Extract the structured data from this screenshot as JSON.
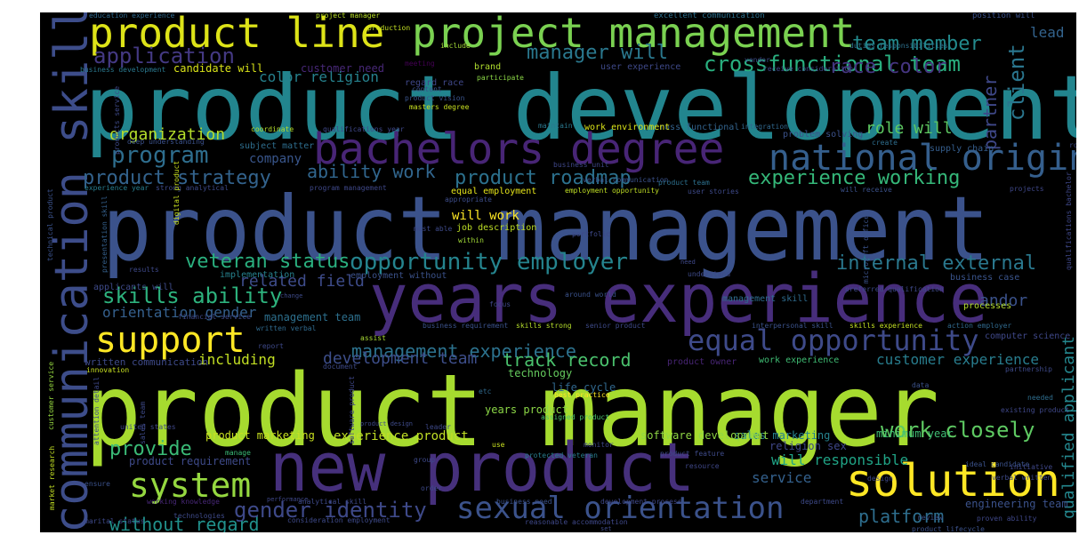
{
  "words": [
    {
      "id": "w01",
      "text": "product manager",
      "color": "#a6db2f"
    },
    {
      "id": "w02",
      "text": "product development",
      "color": "#22858e"
    },
    {
      "id": "w03",
      "text": "product management",
      "color": "#3b528b"
    },
    {
      "id": "w04",
      "text": "years experience",
      "color": "#472d7b"
    },
    {
      "id": "w05",
      "text": "new product",
      "color": "#46307c"
    },
    {
      "id": "w06",
      "text": "bachelors degree",
      "color": "#482576"
    },
    {
      "id": "w07",
      "text": "communication skill",
      "color": "#3d4d8a"
    },
    {
      "id": "w08",
      "text": "product line",
      "color": "#dde318"
    },
    {
      "id": "w09",
      "text": "project management",
      "color": "#7ad151"
    },
    {
      "id": "w10",
      "text": "solution",
      "color": "#fde725"
    },
    {
      "id": "w11",
      "text": "national origin",
      "color": "#355f8d"
    },
    {
      "id": "w12",
      "text": "support",
      "color": "#fde725"
    },
    {
      "id": "w13",
      "text": "equal opportunity",
      "color": "#3e4a89"
    },
    {
      "id": "w14",
      "text": "sexual orientation",
      "color": "#3b528b"
    },
    {
      "id": "w15",
      "text": "system",
      "color": "#95d840"
    },
    {
      "id": "w16",
      "text": "opportunity employer",
      "color": "#25848e"
    },
    {
      "id": "w17",
      "text": "gender identity",
      "color": "#3e4989"
    },
    {
      "id": "w18",
      "text": "crossfunctional team",
      "color": "#29af7f"
    },
    {
      "id": "w19",
      "text": "application",
      "color": "#443983"
    },
    {
      "id": "w20",
      "text": "team member",
      "color": "#238a8d"
    },
    {
      "id": "w21",
      "text": "race color",
      "color": "#453581"
    },
    {
      "id": "w22",
      "text": "manager will",
      "color": "#2a788e"
    },
    {
      "id": "w23",
      "text": "client",
      "color": "#2a768e"
    },
    {
      "id": "w24",
      "text": "partner",
      "color": "#3f4889"
    },
    {
      "id": "w25",
      "text": "program",
      "color": "#2e6e8e"
    },
    {
      "id": "w26",
      "text": "product strategy",
      "color": "#33638d"
    },
    {
      "id": "w27",
      "text": "product roadmap",
      "color": "#2c718e"
    },
    {
      "id": "w28",
      "text": "experience working",
      "color": "#35b779"
    },
    {
      "id": "w29",
      "text": "ability work",
      "color": "#31668e"
    },
    {
      "id": "w30",
      "text": "veteran status",
      "color": "#2ab07f"
    },
    {
      "id": "w31",
      "text": "internal external",
      "color": "#2a788e"
    },
    {
      "id": "w32",
      "text": "skills ability",
      "color": "#2db27d"
    },
    {
      "id": "w33",
      "text": "related field",
      "color": "#3e4c8a"
    },
    {
      "id": "w34",
      "text": "management experience",
      "color": "#2c728e"
    },
    {
      "id": "w35",
      "text": "track record",
      "color": "#4ac16d"
    },
    {
      "id": "w36",
      "text": "development team",
      "color": "#3d4e8a"
    },
    {
      "id": "w37",
      "text": "customer experience",
      "color": "#287d8e"
    },
    {
      "id": "w38",
      "text": "work closely",
      "color": "#5ec962"
    },
    {
      "id": "w39",
      "text": "provide",
      "color": "#3aba76"
    },
    {
      "id": "w40",
      "text": "without regard",
      "color": "#21918c"
    },
    {
      "id": "w41",
      "text": "platform",
      "color": "#2e6e8e"
    },
    {
      "id": "w42",
      "text": "will responsible",
      "color": "#20a486"
    },
    {
      "id": "w43",
      "text": "service",
      "color": "#34618d"
    },
    {
      "id": "w44",
      "text": "role will",
      "color": "#5ec962"
    },
    {
      "id": "w45",
      "text": "organization",
      "color": "#b5de2b"
    },
    {
      "id": "w46",
      "text": "company",
      "color": "#39568c"
    },
    {
      "id": "w47",
      "text": "color religion",
      "color": "#26828e"
    },
    {
      "id": "w48",
      "text": "lead",
      "color": "#33638d"
    },
    {
      "id": "w49",
      "text": "andor",
      "color": "#3b528b"
    },
    {
      "id": "w50",
      "text": "including",
      "color": "#c2df23"
    },
    {
      "id": "w51",
      "text": "orientation gender",
      "color": "#35608d"
    },
    {
      "id": "w52",
      "text": "management team",
      "color": "#2d708e"
    },
    {
      "id": "w53",
      "text": "candidate will",
      "color": "#d8e219"
    },
    {
      "id": "w54",
      "text": "customer need",
      "color": "#482878"
    },
    {
      "id": "w55",
      "text": "qualified applicant",
      "color": "#24878e"
    },
    {
      "id": "w56",
      "text": "product marketing",
      "color": "#c8e020"
    },
    {
      "id": "w57",
      "text": "experience product",
      "color": "#c0df25"
    },
    {
      "id": "w58",
      "text": "years product",
      "color": "#8bd646"
    },
    {
      "id": "w59",
      "text": "will work",
      "color": "#fde725"
    },
    {
      "id": "w60",
      "text": "product requirement",
      "color": "#3e4a89"
    },
    {
      "id": "w61",
      "text": "minimum year",
      "color": "#3fbc73"
    },
    {
      "id": "w62",
      "text": "engineering team",
      "color": "#3b528b"
    },
    {
      "id": "w63",
      "text": "life cycle",
      "color": "#31688e"
    },
    {
      "id": "w64",
      "text": "sales marketing",
      "color": "#26828e"
    },
    {
      "id": "w65",
      "text": "technology",
      "color": "#65cb5e"
    },
    {
      "id": "w66",
      "text": "software development",
      "color": "#8fd744"
    },
    {
      "id": "w67",
      "text": "religion sex",
      "color": "#3f4788"
    },
    {
      "id": "w68",
      "text": "written communication",
      "color": "#3e4a89"
    },
    {
      "id": "w69",
      "text": "computer science",
      "color": "#3f4889"
    },
    {
      "id": "w70",
      "text": "work experience",
      "color": "#3fbc73"
    },
    {
      "id": "w71",
      "text": "product owner",
      "color": "#482575"
    },
    {
      "id": "w72",
      "text": "management skill",
      "color": "#2f6c8e"
    },
    {
      "id": "w73",
      "text": "equal employment",
      "color": "#e5e419"
    },
    {
      "id": "w74",
      "text": "job description",
      "color": "#bddf26"
    },
    {
      "id": "w75",
      "text": "employment without",
      "color": "#3b528b"
    },
    {
      "id": "w76",
      "text": "implementation",
      "color": "#26828e"
    },
    {
      "id": "w77",
      "text": "applicants will",
      "color": "#3e4a89"
    },
    {
      "id": "w78",
      "text": "business case",
      "color": "#3a548c"
    },
    {
      "id": "w79",
      "text": "processes",
      "color": "#b5de2b"
    },
    {
      "id": "w80",
      "text": "problem solving",
      "color": "#3b528b"
    },
    {
      "id": "w81",
      "text": "subject matter",
      "color": "#2e6e8e"
    },
    {
      "id": "w82",
      "text": "cross functional",
      "color": "#33638d"
    },
    {
      "id": "w83",
      "text": "work environment",
      "color": "#dae319"
    },
    {
      "id": "w84",
      "text": "supply chain",
      "color": "#355e8d"
    },
    {
      "id": "w85",
      "text": "brand",
      "color": "#b0dd2f"
    },
    {
      "id": "w86",
      "text": "user experience",
      "color": "#3e4989"
    },
    {
      "id": "w87",
      "text": "regard race",
      "color": "#3f4788"
    },
    {
      "id": "w88",
      "text": "excellent communication",
      "color": "#2d718e"
    },
    {
      "id": "w89",
      "text": "position will",
      "color": "#3b528b"
    },
    {
      "id": "w90",
      "text": "project manager",
      "color": "#b8de29"
    },
    {
      "id": "w91",
      "text": "education experience",
      "color": "#306a8e"
    },
    {
      "id": "w92",
      "text": "production",
      "color": "#c2df23"
    },
    {
      "id": "w93",
      "text": "include",
      "color": "#a2da37"
    },
    {
      "id": "w94",
      "text": "duties responsibilities",
      "color": "#2d718e"
    },
    {
      "id": "w95",
      "text": "vendor",
      "color": "#3d4d8a"
    },
    {
      "id": "w96",
      "text": "receive consideration",
      "color": "#3f4788"
    },
    {
      "id": "w97",
      "text": "business development",
      "color": "#2a788e"
    },
    {
      "id": "w98",
      "text": "meeting",
      "color": "#440154"
    },
    {
      "id": "w99",
      "text": "participate",
      "color": "#8bd646"
    },
    {
      "id": "w100",
      "text": "content",
      "color": "#3b528b"
    },
    {
      "id": "w101",
      "text": "product vision",
      "color": "#3a548c"
    },
    {
      "id": "w102",
      "text": "masters degree",
      "color": "#c8e020"
    },
    {
      "id": "w103",
      "text": "coordinate",
      "color": "#b5de2b"
    },
    {
      "id": "w104",
      "text": "qualifications year",
      "color": "#3f4889"
    },
    {
      "id": "w105",
      "text": "maintain",
      "color": "#2a788e"
    },
    {
      "id": "w106",
      "text": "integration",
      "color": "#31688e"
    },
    {
      "id": "w107",
      "text": "deep understanding",
      "color": "#3b528b"
    },
    {
      "id": "w108",
      "text": "create",
      "color": "#2e6e8e"
    },
    {
      "id": "w109",
      "text": "business unit",
      "color": "#3f4788"
    },
    {
      "id": "w110",
      "text": "verbal communication",
      "color": "#3b528b"
    },
    {
      "id": "w111",
      "text": "user stories",
      "color": "#3e4a89"
    },
    {
      "id": "w112",
      "text": "product team",
      "color": "#2d718e"
    },
    {
      "id": "w113",
      "text": "experience year",
      "color": "#287d8e"
    },
    {
      "id": "w114",
      "text": "strong analytical",
      "color": "#3e4a89"
    },
    {
      "id": "w115",
      "text": "program management",
      "color": "#3f4889"
    },
    {
      "id": "w116",
      "text": "employment opportunity",
      "color": "#c0df25"
    },
    {
      "id": "w117",
      "text": "appropriate",
      "color": "#3d4d8a"
    },
    {
      "id": "w118",
      "text": "will receive",
      "color": "#3b528b"
    },
    {
      "id": "w119",
      "text": "within",
      "color": "#a2da37"
    },
    {
      "id": "w120",
      "text": "must able",
      "color": "#3e4a89"
    },
    {
      "id": "w121",
      "text": "portfolio",
      "color": "#3e4989"
    },
    {
      "id": "w122",
      "text": "digital product",
      "color": "#c8e020"
    },
    {
      "id": "w123",
      "text": "presentation skill",
      "color": "#35608d"
    },
    {
      "id": "w124",
      "text": "understand",
      "color": "#3e4a89"
    },
    {
      "id": "w125",
      "text": "preferred qualification",
      "color": "#3e4989"
    },
    {
      "id": "w126",
      "text": "around world",
      "color": "#3b528b"
    },
    {
      "id": "w127",
      "text": "focus",
      "color": "#3f4788"
    },
    {
      "id": "w128",
      "text": "financial service",
      "color": "#3e4989"
    },
    {
      "id": "w129",
      "text": "written verbal",
      "color": "#306a8e"
    },
    {
      "id": "w130",
      "text": "assist",
      "color": "#a8db34"
    },
    {
      "id": "w131",
      "text": "business requirement",
      "color": "#3b528b"
    },
    {
      "id": "w132",
      "text": "skills strong",
      "color": "#b5de2b"
    },
    {
      "id": "w133",
      "text": "senior product",
      "color": "#3e4a89"
    },
    {
      "id": "w134",
      "text": "interpersonal skill",
      "color": "#3b528b"
    },
    {
      "id": "w135",
      "text": "skills experience",
      "color": "#c2df23"
    },
    {
      "id": "w136",
      "text": "action employer",
      "color": "#306a8e"
    },
    {
      "id": "w137",
      "text": "report",
      "color": "#3e4989"
    },
    {
      "id": "w138",
      "text": "innovation",
      "color": "#c8e020"
    },
    {
      "id": "w139",
      "text": "document",
      "color": "#3e4a89"
    },
    {
      "id": "w140",
      "text": "etc",
      "color": "#306a8e"
    },
    {
      "id": "w141",
      "text": "best practice",
      "color": "#fde725"
    },
    {
      "id": "w142",
      "text": "assigned product",
      "color": "#4ac16d"
    },
    {
      "id": "w143",
      "text": "use",
      "color": "#c8e020"
    },
    {
      "id": "w144",
      "text": "monitor",
      "color": "#3f4788"
    },
    {
      "id": "w145",
      "text": "protected veteran",
      "color": "#287d8e"
    },
    {
      "id": "w146",
      "text": "product feature",
      "color": "#3e4a89"
    },
    {
      "id": "w147",
      "text": "resource",
      "color": "#3f4788"
    },
    {
      "id": "w148",
      "text": "design",
      "color": "#3e4989"
    },
    {
      "id": "w149",
      "text": "initiative",
      "color": "#3f4788"
    },
    {
      "id": "w150",
      "text": "ideal candidate",
      "color": "#3b528b"
    },
    {
      "id": "w151",
      "text": "needed",
      "color": "#2e6e8e"
    },
    {
      "id": "w152",
      "text": "existing product",
      "color": "#3f4889"
    },
    {
      "id": "w153",
      "text": "partnership",
      "color": "#3e4a89"
    },
    {
      "id": "w154",
      "text": "data",
      "color": "#3b528b"
    },
    {
      "id": "w155",
      "text": "manage",
      "color": "#3aba76"
    },
    {
      "id": "w156",
      "text": "group",
      "color": "#3e4989"
    },
    {
      "id": "w157",
      "text": "ensure",
      "color": "#3b528b"
    },
    {
      "id": "w158",
      "text": "working knowledge",
      "color": "#482878"
    },
    {
      "id": "w159",
      "text": "analytical skill",
      "color": "#3e4a89"
    },
    {
      "id": "w160",
      "text": "order",
      "color": "#3e4989"
    },
    {
      "id": "w161",
      "text": "business need",
      "color": "#3b528b"
    },
    {
      "id": "w162",
      "text": "development process",
      "color": "#3f4889"
    },
    {
      "id": "w163",
      "text": "department",
      "color": "#3e4a89"
    },
    {
      "id": "w164",
      "text": "review",
      "color": "#3b528b"
    },
    {
      "id": "w165",
      "text": "proven ability",
      "color": "#3f4788"
    },
    {
      "id": "w166",
      "text": "consideration employment",
      "color": "#3e4a89"
    },
    {
      "id": "w167",
      "text": "marital status",
      "color": "#3e4989"
    },
    {
      "id": "w168",
      "text": "reasonable accommodation",
      "color": "#3f4889"
    },
    {
      "id": "w169",
      "text": "product lifecycle",
      "color": "#3b528b"
    },
    {
      "id": "w170",
      "text": "technologies",
      "color": "#3e4a89"
    },
    {
      "id": "w171",
      "text": "performance",
      "color": "#3f4788"
    },
    {
      "id": "w172",
      "text": "product design",
      "color": "#3e4a89"
    },
    {
      "id": "w173",
      "text": "united states",
      "color": "#3f4889"
    },
    {
      "id": "w174",
      "text": "attention detail",
      "color": "#3e4989"
    },
    {
      "id": "w175",
      "text": "market research",
      "color": "#c2df23"
    },
    {
      "id": "w176",
      "text": "customer service",
      "color": "#95d840"
    },
    {
      "id": "w177",
      "text": "products service",
      "color": "#3e4a89"
    },
    {
      "id": "w178",
      "text": "technical product",
      "color": "#3b528b"
    },
    {
      "id": "w179",
      "text": "demonstrated ability",
      "color": "#3e4989"
    },
    {
      "id": "w180",
      "text": "qualifications bachelor",
      "color": "#3f4889"
    },
    {
      "id": "w181",
      "text": "software product",
      "color": "#3f4788"
    },
    {
      "id": "w182",
      "text": "sales team",
      "color": "#3e4a89"
    },
    {
      "id": "w183",
      "text": "leader",
      "color": "#3e4989"
    },
    {
      "id": "w184",
      "text": "verbal written",
      "color": "#3e4a89"
    },
    {
      "id": "w185",
      "text": "microsoft office",
      "color": "#3b528b"
    },
    {
      "id": "w186",
      "text": "roles",
      "color": "#3e4a89"
    },
    {
      "id": "w187",
      "text": "network",
      "color": "#3f4889"
    },
    {
      "id": "w188",
      "text": "results",
      "color": "#3e4989"
    },
    {
      "id": "w189",
      "text": "projects",
      "color": "#3f4788"
    },
    {
      "id": "w190",
      "text": "change",
      "color": "#3e4a89"
    },
    {
      "id": "w191",
      "text": "need",
      "color": "#3f4889"
    },
    {
      "id": "w192",
      "text": "set",
      "color": "#3e4989"
    }
  ]
}
